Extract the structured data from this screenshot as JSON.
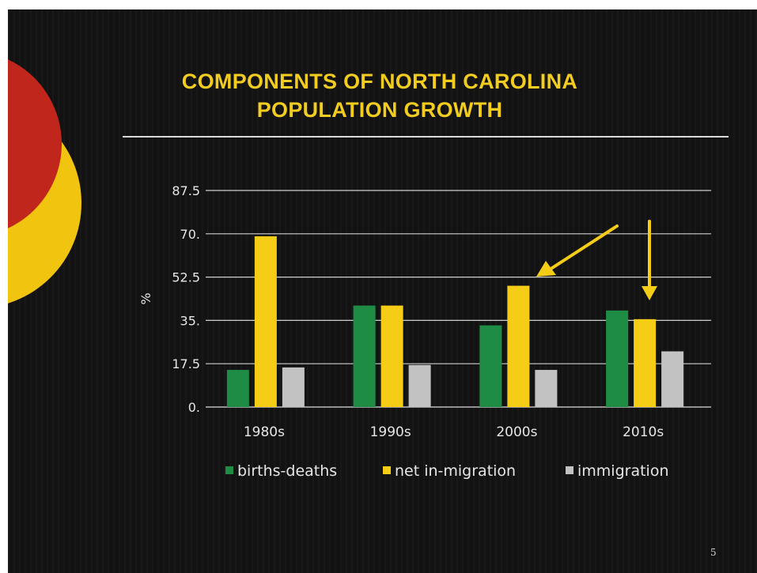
{
  "slide": {
    "title_line_1": "COMPONENTS OF NORTH CAROLINA",
    "title_line_2": "POPULATION GROWTH",
    "page_number": "5"
  },
  "colors": {
    "background": "#121212",
    "title": "#f2cc1e",
    "births_deaths": "#1f8c45",
    "net_in_migration": "#f5cd16",
    "immigration": "#c2c2c2",
    "arrow": "#f5cd16",
    "deco_red": "#c0261c",
    "deco_yellow": "#f1c40f"
  },
  "chart_data": {
    "type": "bar",
    "categories": [
      "1980s",
      "1990s",
      "2000s",
      "2010s"
    ],
    "series": [
      {
        "name": "births-deaths",
        "values": [
          15,
          41,
          33,
          39
        ]
      },
      {
        "name": "net in-migration",
        "values": [
          69,
          41,
          49,
          35.5
        ]
      },
      {
        "name": "immigration",
        "values": [
          16,
          17,
          15,
          22.5
        ]
      }
    ],
    "title": "COMPONENTS OF NORTH CAROLINA POPULATION GROWTH",
    "xlabel": "",
    "ylabel": "%",
    "ylim": [
      0,
      87.5
    ],
    "yticks": [
      "0.",
      "17.5",
      "35.",
      "52.5",
      "70.",
      "87.5"
    ],
    "grid": true,
    "legend_position": "bottom",
    "annotations": [
      {
        "type": "arrow",
        "points_to": "2000s net in-migration"
      },
      {
        "type": "arrow",
        "points_to": "2010s net in-migration"
      }
    ]
  }
}
